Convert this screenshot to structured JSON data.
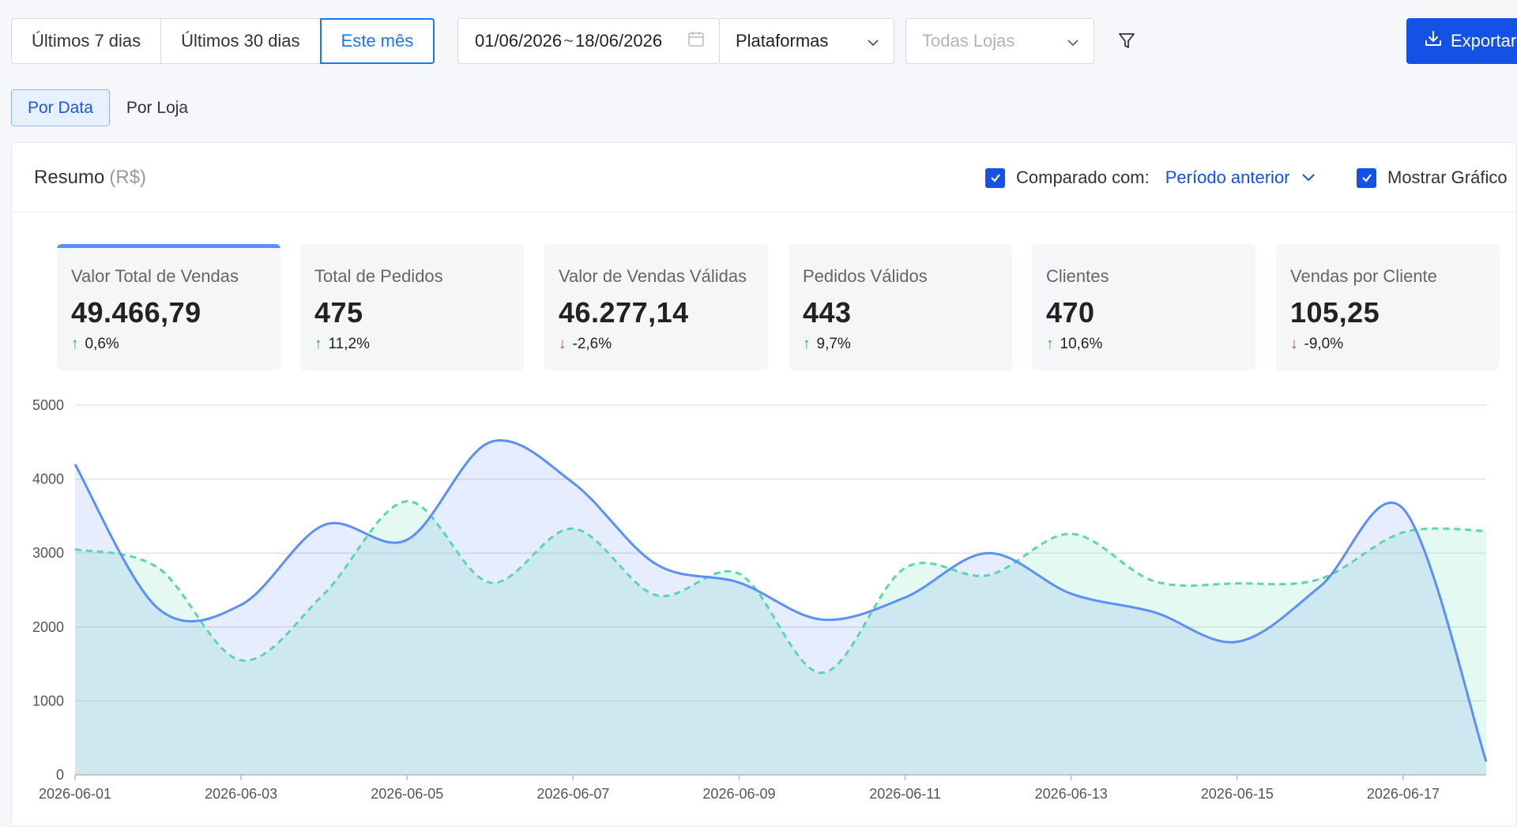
{
  "toolbar": {
    "range_buttons": [
      "Últimos 7 dias",
      "Últimos 30 dias",
      "Este mês"
    ],
    "date_start": "01/06/2026",
    "date_sep": "~",
    "date_end": "18/06/2026",
    "platforms_label": "Plataformas",
    "stores_placeholder": "Todas Lojas",
    "export_label": "Exportar"
  },
  "view_tabs": [
    "Por Data",
    "Por Loja"
  ],
  "summary": {
    "title": "Resumo",
    "unit": "(R$)",
    "compare_label": "Comparado com:",
    "compare_value": "Período anterior",
    "show_chart_label": "Mostrar Gráfico"
  },
  "kpis": [
    {
      "label": "Valor Total de Vendas",
      "value": "49.466,79",
      "change": "0,6%",
      "direction": "up"
    },
    {
      "label": "Total de Pedidos",
      "value": "475",
      "change": "11,2%",
      "direction": "up"
    },
    {
      "label": "Valor de Vendas Válidas",
      "value": "46.277,14",
      "change": "-2,6%",
      "direction": "down"
    },
    {
      "label": "Pedidos Válidos",
      "value": "443",
      "change": "9,7%",
      "direction": "up"
    },
    {
      "label": "Clientes",
      "value": "470",
      "change": "10,6%",
      "direction": "up"
    },
    {
      "label": "Vendas por Cliente",
      "value": "105,25",
      "change": "-9,0%",
      "direction": "down"
    }
  ],
  "colors": {
    "accent": "#1352e5",
    "current_series": "#5b8ff9",
    "previous_series": "#5ad8a6",
    "up": "#2aa84a",
    "down": "#e8333a"
  },
  "chart_data": {
    "type": "area",
    "ylim": [
      0,
      5000
    ],
    "yticks": [
      0,
      1000,
      2000,
      3000,
      4000,
      5000
    ],
    "x": [
      "2026-06-01",
      "2026-06-02",
      "2026-06-03",
      "2026-06-04",
      "2026-06-05",
      "2026-06-06",
      "2026-06-07",
      "2026-06-08",
      "2026-06-09",
      "2026-06-10",
      "2026-06-11",
      "2026-06-12",
      "2026-06-13",
      "2026-06-14",
      "2026-06-15",
      "2026-06-16",
      "2026-06-17",
      "2026-06-18"
    ],
    "xticks": [
      "2026-06-01",
      "2026-06-03",
      "2026-06-05",
      "2026-06-07",
      "2026-06-09",
      "2026-06-11",
      "2026-06-13",
      "2026-06-15",
      "2026-06-17"
    ],
    "grid": true,
    "series": [
      {
        "values": [
          4200,
          2250,
          2300,
          3380,
          3180,
          4500,
          3950,
          2850,
          2600,
          2100,
          2400,
          3000,
          2450,
          2200,
          1800,
          2550,
          3600,
          180
        ]
      },
      {
        "values": [
          3050,
          2800,
          1550,
          2450,
          3700,
          2600,
          3330,
          2430,
          2720,
          1380,
          2800,
          2700,
          3260,
          2620,
          2590,
          2650,
          3280,
          3300
        ]
      }
    ]
  }
}
